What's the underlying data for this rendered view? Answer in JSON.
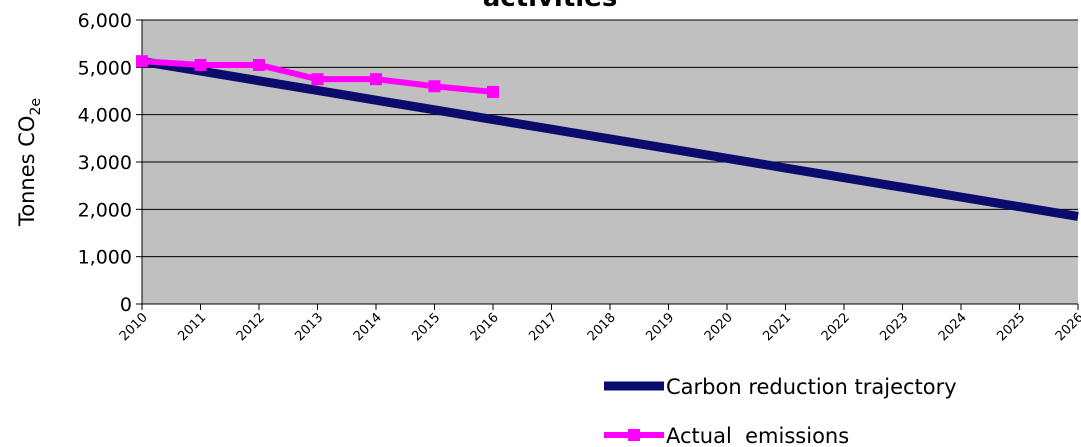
{
  "chart_data": {
    "type": "line",
    "title": "activities",
    "ylabel": "Tonnes CO",
    "ylabel_subscript": "2e",
    "categories": [
      "2010",
      "2011",
      "2012",
      "2013",
      "2014",
      "2015",
      "2016",
      "2017",
      "2018",
      "2019",
      "2020",
      "2021",
      "2022",
      "2023",
      "2024",
      "2025",
      "2026"
    ],
    "series": [
      {
        "name": "Carbon reduction trajectory",
        "color": "#0b0b6e",
        "values": [
          5125,
          4920,
          4716,
          4511,
          4306,
          4102,
          3897,
          3692,
          3488,
          3283,
          3078,
          2873,
          2669,
          2464,
          2259,
          2055,
          1850
        ]
      },
      {
        "name": "Actual  emissions",
        "color": "#ff00ff",
        "marker": "square",
        "values": [
          5130,
          5050,
          5050,
          4750,
          4750,
          4600,
          4480,
          null,
          null,
          null,
          null,
          null,
          null,
          null,
          null,
          null,
          null
        ]
      }
    ],
    "ylim": [
      0,
      6000
    ],
    "yticks": [
      0,
      {
        "value": 1000,
        "label": "1,000"
      },
      {
        "value": 2000,
        "label": "2,000"
      },
      {
        "value": 3000,
        "label": "3,000"
      },
      {
        "value": 4000,
        "label": "4,000"
      },
      {
        "value": 5000,
        "label": "5,000"
      },
      {
        "value": 6000,
        "label": "6,000"
      }
    ],
    "grid": true,
    "plot_background": "#c0c0c0",
    "legend_position": "bottom-right"
  }
}
